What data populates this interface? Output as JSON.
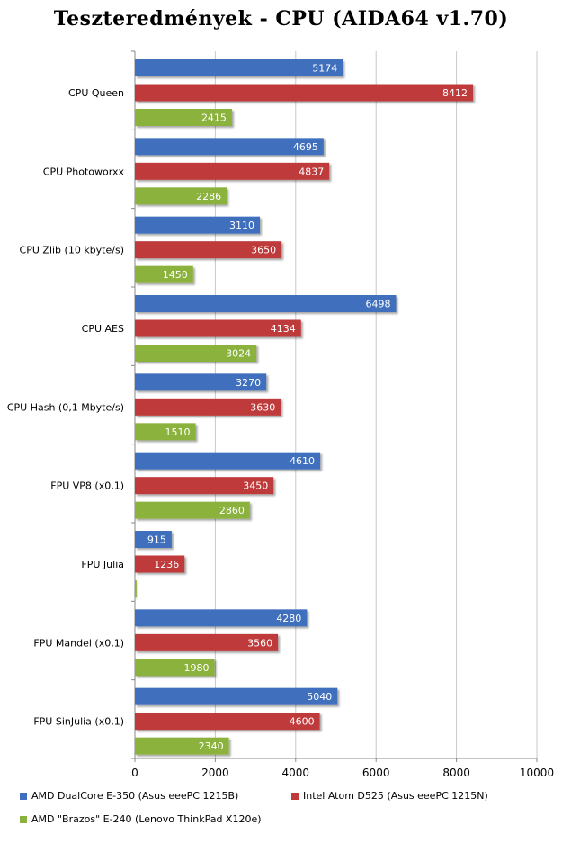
{
  "chart_data": {
    "type": "bar",
    "orientation": "horizontal",
    "title": "Teszteredmények - CPU (AIDA64 v1.70)",
    "categories": [
      "CPU Queen",
      "CPU Photoworxx",
      "CPU Zlib (10 kbyte/s)",
      "CPU AES",
      "CPU Hash (0,1 Mbyte/s)",
      "FPU VP8 (x0,1)",
      "FPU Julia",
      "FPU Mandel (x0,1)",
      "FPU SinJulia (x0,1)"
    ],
    "series": [
      {
        "name": "AMD DualCore E-350 (Asus eeePC 1215B)",
        "color": "#3f6fbd",
        "values": [
          5174,
          4695,
          3110,
          6498,
          3270,
          4610,
          915,
          4280,
          5040
        ]
      },
      {
        "name": "Intel Atom D525 (Asus eeePC 1215N)",
        "color": "#bf3b3b",
        "values": [
          8412,
          4837,
          3650,
          4134,
          3630,
          3450,
          1236,
          3560,
          4600
        ]
      },
      {
        "name": "AMD \"Brazos\" E-240 (Lenovo ThinkPad X120e)",
        "color": "#8bb23e",
        "values": [
          2415,
          2286,
          1450,
          3024,
          1510,
          2860,
          42,
          1980,
          2340
        ]
      }
    ],
    "xlim": [
      0,
      10000
    ],
    "x_ticks": [
      "0",
      "2000",
      "4000",
      "6000",
      "8000",
      "10000"
    ],
    "grid": true,
    "legend_position": "bottom"
  }
}
